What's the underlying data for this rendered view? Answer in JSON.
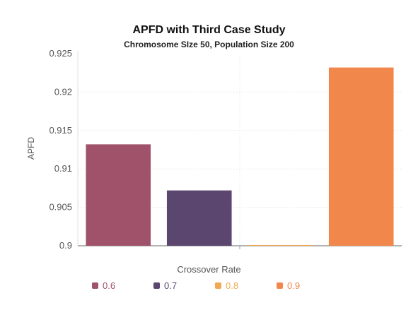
{
  "chart_data": {
    "type": "bar",
    "title": "APFD with Third Case Study",
    "subtitle": "Chromosome SIze 50, Population Size 200",
    "xlabel": "Crossover Rate",
    "ylabel": "APFD",
    "ylim": [
      0.9,
      0.925
    ],
    "yticks": [
      "0.925",
      "0.92",
      "0.915",
      "0.91",
      "0.905",
      "0.9"
    ],
    "grid": true,
    "legend_position": "bottom",
    "categories": [
      "0.6",
      "0.7",
      "0.8",
      "0.9"
    ],
    "values": [
      0.9132,
      0.9072,
      0.9001,
      0.9232
    ],
    "colors": [
      "#a0526a",
      "#5b4670",
      "#f3a952",
      "#f2874c"
    ]
  }
}
